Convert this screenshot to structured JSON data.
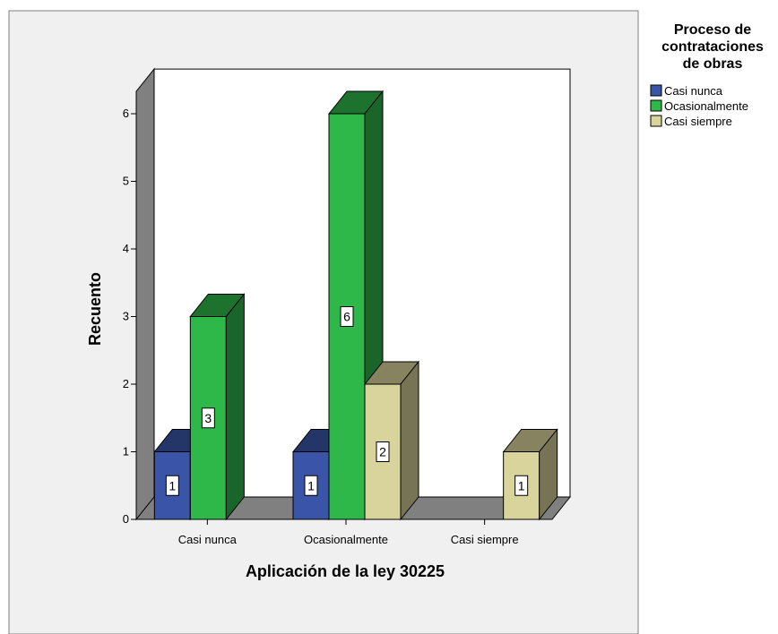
{
  "chart_data": {
    "type": "bar",
    "categories": [
      "Casi nunca",
      "Ocasionalmente",
      "Casi siempre"
    ],
    "series": [
      {
        "name": "Casi nunca",
        "values": [
          1,
          1,
          0
        ],
        "color": "#3a55a8"
      },
      {
        "name": "Ocasionalmente",
        "values": [
          3,
          6,
          0
        ],
        "color": "#2fb84a"
      },
      {
        "name": "Casi siempre",
        "values": [
          0,
          2,
          1
        ],
        "color": "#d9d39c"
      }
    ],
    "xlabel": "Aplicación de la ley 30225",
    "ylabel": "Recuento",
    "ylim": [
      0,
      6
    ],
    "yticks": [
      0,
      1,
      2,
      3,
      4,
      5,
      6
    ],
    "legend": {
      "title_lines": [
        "Proceso de",
        "contrataciones",
        "de obras"
      ],
      "position": "right"
    },
    "style": "3d",
    "grid": false
  }
}
